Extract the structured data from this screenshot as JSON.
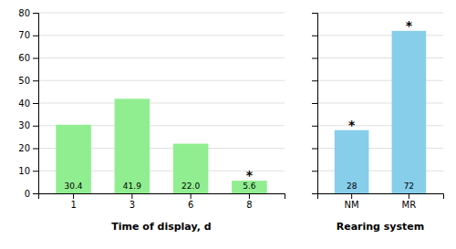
{
  "chart_data": [
    {
      "type": "bar",
      "xlabel": "Time of display, d",
      "categories": [
        "1",
        "3",
        "6",
        "8"
      ],
      "values": [
        30.4,
        41.9,
        22.0,
        5.6
      ],
      "value_labels": [
        "30.4",
        "41.9",
        "22.0",
        "5.6"
      ],
      "data_labels": true,
      "color": "#90EE90",
      "ylim": [
        0,
        80
      ],
      "yticks": [
        0,
        10,
        20,
        30,
        40,
        50,
        60,
        70,
        80
      ],
      "grid": true,
      "annotations": [
        {
          "text": "*",
          "x": "8"
        }
      ]
    },
    {
      "type": "bar",
      "xlabel": "Rearing system",
      "categories": [
        "NM",
        "MR"
      ],
      "values": [
        28,
        72
      ],
      "data_labels": true,
      "color": "#87CEEB",
      "ylim": [
        0,
        80
      ],
      "yticks": [
        0,
        10,
        20,
        30,
        40,
        50,
        60,
        70,
        80
      ],
      "grid": true,
      "tick_labels": "x",
      "annotations": [
        {
          "text": "*",
          "x": "NM"
        },
        {
          "text": "*",
          "x": "MR"
        }
      ]
    }
  ]
}
